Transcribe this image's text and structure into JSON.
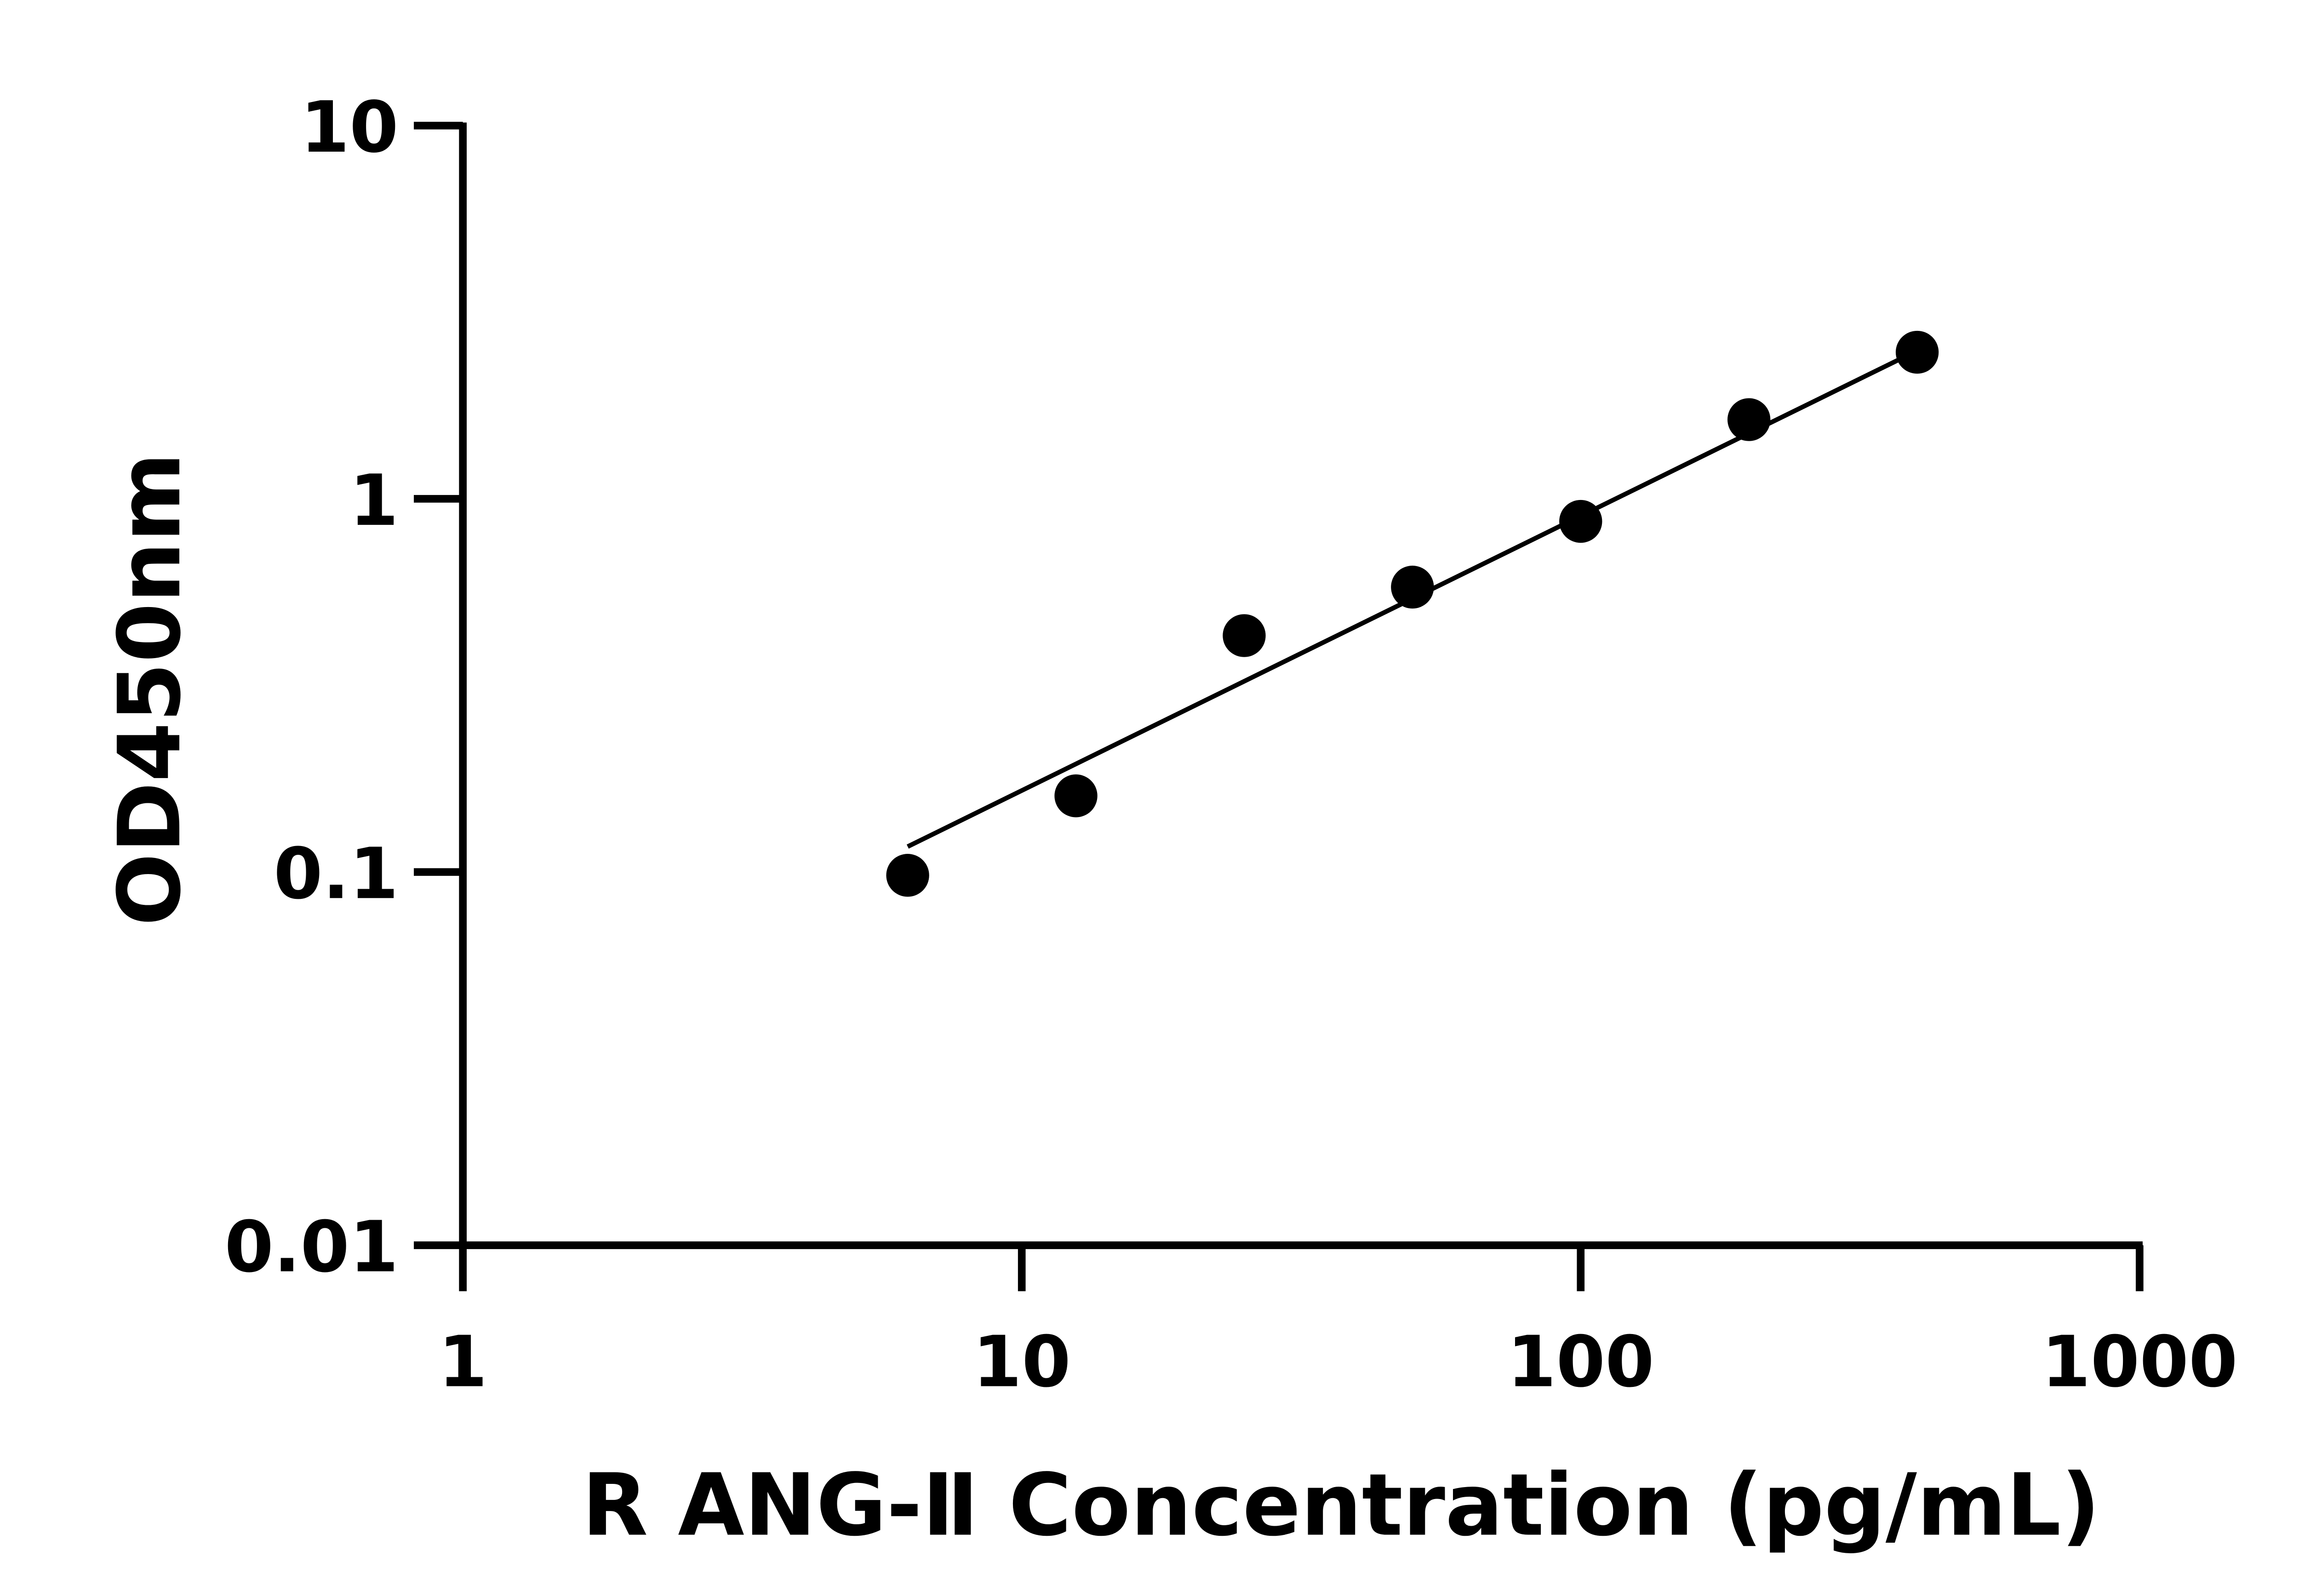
{
  "chart_data": {
    "type": "scatter",
    "title": "",
    "xlabel": "R ANG-Ⅱ Concentration (pg/mL)",
    "ylabel": "OD450nm",
    "xscale": "log",
    "yscale": "log",
    "xlim": [
      1,
      1000
    ],
    "ylim": [
      0.01,
      10
    ],
    "xticks": [
      1,
      10,
      100,
      1000
    ],
    "xtick_labels": [
      "1",
      "10",
      "100",
      "1000"
    ],
    "yticks": [
      0.01,
      0.1,
      1,
      10
    ],
    "ytick_labels": [
      "0.01",
      "0.1",
      "1",
      "10"
    ],
    "grid": false,
    "legend": "none",
    "points": {
      "x": [
        6.25,
        12.5,
        25,
        50,
        100,
        200,
        400
      ],
      "y": [
        0.098,
        0.16,
        0.43,
        0.58,
        0.87,
        1.63,
        2.47
      ]
    },
    "fit_line": {
      "x": [
        6.25,
        371
      ],
      "y": [
        0.117,
        2.36
      ]
    },
    "colors": {
      "marker": "#000000",
      "line": "#000000",
      "axis": "#000000"
    }
  }
}
